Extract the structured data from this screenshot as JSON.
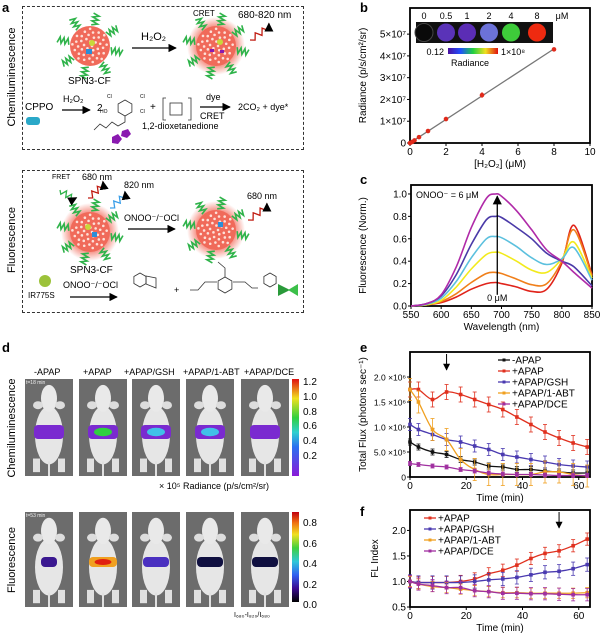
{
  "panels": {
    "a": "a",
    "b": "b",
    "c": "c",
    "d": "d",
    "e": "e",
    "f": "f"
  },
  "panel_a": {
    "row_labels": {
      "chemi": "Chemiluminescence",
      "fluo": "Fluorescence"
    },
    "chemi": {
      "oxidant": "H₂O₂",
      "cret": "CRET",
      "emission": "680-820 nm",
      "particle": "SPN3-CF",
      "cppo": "CPPO",
      "oxidant2": "H₂O₂",
      "coeff": "2",
      "plus": "+",
      "dye": "dye",
      "cret2": "CRET",
      "products": "2CO₂ + dye*",
      "intermediate": "1,2-dioxetanedione",
      "cl1": "Cl",
      "cl2": "Cl",
      "cl3": "Cl",
      "ho": "HO"
    },
    "fluo": {
      "fret": "FRET",
      "em1": "680 nm",
      "em2": "820 nm",
      "em3": "680 nm",
      "oxidant": "ONOO⁻/⁻OCl",
      "particle": "SPN3-CF",
      "dye": "IR775S",
      "oxidant2": "ONOO⁻/⁻OCl",
      "plus": "+"
    }
  },
  "panel_d": {
    "columns": [
      "-APAP",
      "+APAP",
      "+APAP/GSH",
      "+APAP/1-ABT",
      "+APAP/DCE"
    ],
    "row_labels": {
      "chemi": "Chemiluminescence",
      "fluo": "Fluorescence"
    },
    "timestamps": {
      "chemi": "t=18 min",
      "fluo": "t=53 min"
    },
    "colorbar_chemi": {
      "ticks": [
        "1.2",
        "1.0",
        "0.8",
        "0.6",
        "0.4",
        "0.2"
      ],
      "caption": "× 10⁵ Radiance (p/s/cm²/sr)"
    },
    "colorbar_fluo": {
      "ticks": [
        "0.8",
        "0.6",
        "0.4",
        "0.2",
        "0.0"
      ],
      "caption": "I₆₈₀-I₈₂₀/I₆₈₀"
    },
    "signal_intensity_chemi": [
      0.2,
      1.1,
      0.5,
      0.4,
      0.15
    ],
    "signal_intensity_fluo": [
      0.05,
      0.75,
      0.15,
      0.05,
      0.05
    ]
  },
  "chart_data": [
    {
      "id": "b",
      "type": "scatter",
      "xlabel": "[H₂O₂] (μM)",
      "ylabel": "Radiance (p/s/cm²/sr)",
      "xlim": [
        0,
        10
      ],
      "ylim": [
        0,
        62000000
      ],
      "xticks": [
        0,
        2,
        4,
        6,
        8,
        10
      ],
      "xtick_labels": [
        "0",
        "2",
        "4",
        "6",
        "8",
        "10"
      ],
      "yticks": [
        0,
        10000000,
        20000000,
        30000000,
        40000000,
        50000000
      ],
      "ytick_labels": [
        "0",
        "1×10⁷",
        "2×10⁷",
        "3×10⁷",
        "4×10⁷",
        "5×10⁷"
      ],
      "x": [
        0,
        0.125,
        0.25,
        0.5,
        1,
        2,
        4,
        8
      ],
      "y": [
        0,
        500000,
        1200000,
        2700000,
        5500000,
        11000000,
        22000000,
        43000000
      ],
      "err": [
        200000,
        200000,
        300000,
        400000,
        500000,
        1000000,
        1300000,
        900000
      ],
      "fit": "linear",
      "marker_color": "#e02a1b",
      "fit_color": "#777777",
      "inset": {
        "labels": [
          "0",
          "0.5",
          "1",
          "2",
          "4",
          "8"
        ],
        "unit": "μM",
        "cbar_min": "0.12",
        "cbar_max": "1×10⁸",
        "cbar_label": "Radiance",
        "well_colors": [
          "#0a0a0a",
          "#5a33b8",
          "#5b2db5",
          "#6c72d8",
          "#3ecb3a",
          "#ee2a10"
        ]
      }
    },
    {
      "id": "c",
      "type": "line",
      "xlabel": "Wavelength (nm)",
      "ylabel": "Fluorescence (Norm.)",
      "xlim": [
        550,
        850
      ],
      "ylim": [
        0,
        1.08
      ],
      "xticks": [
        550,
        600,
        650,
        700,
        750,
        800,
        850
      ],
      "xtick_labels": [
        "550",
        "600",
        "650",
        "700",
        "750",
        "800",
        "850"
      ],
      "yticks": [
        0,
        0.2,
        0.4,
        0.6,
        0.8,
        1.0
      ],
      "ytick_labels": [
        "0.0",
        "0.2",
        "0.4",
        "0.6",
        "0.8",
        "1.0"
      ],
      "x": [
        550,
        575,
        600,
        625,
        650,
        675,
        690,
        700,
        725,
        750,
        775,
        800,
        820,
        850
      ],
      "series": [
        {
          "color": "#e0241b",
          "values": [
            0,
            0.01,
            0.03,
            0.08,
            0.15,
            0.2,
            0.21,
            0.2,
            0.17,
            0.13,
            0.15,
            0.38,
            0.72,
            0.28
          ]
        },
        {
          "color": "#f07f1a",
          "values": [
            0,
            0.01,
            0.04,
            0.11,
            0.21,
            0.29,
            0.3,
            0.29,
            0.24,
            0.19,
            0.2,
            0.4,
            0.68,
            0.27
          ]
        },
        {
          "color": "#f2ea1c",
          "values": [
            0,
            0.01,
            0.05,
            0.17,
            0.33,
            0.46,
            0.48,
            0.47,
            0.4,
            0.32,
            0.3,
            0.42,
            0.57,
            0.25
          ]
        },
        {
          "color": "#5bc0de",
          "values": [
            0,
            0.015,
            0.07,
            0.22,
            0.43,
            0.6,
            0.62,
            0.61,
            0.53,
            0.43,
            0.37,
            0.42,
            0.52,
            0.23
          ]
        },
        {
          "color": "#4a3aa8",
          "values": [
            0,
            0.02,
            0.09,
            0.28,
            0.55,
            0.77,
            0.8,
            0.79,
            0.7,
            0.6,
            0.47,
            0.4,
            0.35,
            0.18
          ]
        },
        {
          "color": "#b02aa8",
          "values": [
            0,
            0.02,
            0.1,
            0.35,
            0.7,
            0.96,
            1.0,
            0.98,
            0.85,
            0.68,
            0.5,
            0.4,
            0.3,
            0.16
          ]
        }
      ],
      "annotations": {
        "top": "ONOO⁻ = 6 μM",
        "bottom": "0 μM",
        "arrow_x": 693
      }
    },
    {
      "id": "e",
      "type": "line",
      "xlabel": "Time (min)",
      "ylabel": "Total Flux (photons sec⁻¹)",
      "xlim": [
        0,
        64
      ],
      "ylim": [
        0,
        2500000
      ],
      "xticks": [
        0,
        20,
        40,
        60
      ],
      "xtick_labels": [
        "0",
        "20",
        "40",
        "60"
      ],
      "yticks": [
        0,
        500000,
        1000000,
        1500000,
        2000000
      ],
      "ytick_labels": [
        "0",
        "5.0 ×10⁵",
        "1.0 ×10⁶",
        "1.5 ×10⁶",
        "2.0 ×10⁶"
      ],
      "x": [
        0,
        3,
        8,
        13,
        18,
        23,
        28,
        33,
        38,
        43,
        48,
        53,
        58,
        63
      ],
      "arrow_x": 13,
      "legend": "top-right",
      "series": [
        {
          "name": "-APAP",
          "color": "#111111",
          "values": [
            700000,
            600000,
            500000,
            450000,
            350000,
            300000,
            220000,
            200000,
            150000,
            150000,
            120000,
            100000,
            80000,
            80000
          ],
          "err": 60000
        },
        {
          "name": "+APAP",
          "color": "#e0301e",
          "values": [
            1750000,
            1750000,
            1550000,
            1700000,
            1650000,
            1550000,
            1450000,
            1350000,
            1200000,
            1050000,
            900000,
            780000,
            680000,
            600000
          ],
          "err": 150000
        },
        {
          "name": "+APAP/GSH",
          "color": "#4a3ab0",
          "values": [
            1050000,
            950000,
            850000,
            750000,
            700000,
            620000,
            550000,
            450000,
            400000,
            350000,
            300000,
            250000,
            220000,
            200000
          ],
          "err": 120000
        },
        {
          "name": "+APAP/1-ABT",
          "color": "#f0a020",
          "values": [
            1750000,
            1500000,
            950000,
            750000,
            350000,
            150000,
            50000,
            50000,
            50000,
            50000,
            100000,
            100000,
            50000,
            20000
          ],
          "err": 220000
        },
        {
          "name": "+APAP/DCE",
          "color": "#a030a0",
          "values": [
            270000,
            250000,
            220000,
            200000,
            150000,
            120000,
            80000,
            60000,
            50000,
            50000,
            40000,
            30000,
            30000,
            30000
          ],
          "err": 40000
        }
      ]
    },
    {
      "id": "f",
      "type": "line",
      "xlabel": "Time (min)",
      "ylabel": "FL Index",
      "xlim": [
        0,
        64
      ],
      "ylim": [
        0.5,
        2.4
      ],
      "xticks": [
        0,
        20,
        40,
        60
      ],
      "xtick_labels": [
        "0",
        "20",
        "40",
        "60"
      ],
      "yticks": [
        0.5,
        1.0,
        1.5,
        2.0
      ],
      "ytick_labels": [
        "0.5",
        "1.0",
        "1.5",
        "2.0"
      ],
      "x": [
        0,
        3,
        8,
        13,
        18,
        23,
        28,
        33,
        38,
        43,
        48,
        53,
        58,
        63
      ],
      "arrow_x": 53,
      "legend": "top-left",
      "series": [
        {
          "name": "+APAP",
          "color": "#e0301e",
          "values": [
            1.0,
            0.98,
            0.98,
            0.98,
            1.0,
            1.05,
            1.15,
            1.22,
            1.32,
            1.45,
            1.55,
            1.6,
            1.7,
            1.83
          ],
          "err": 0.12
        },
        {
          "name": "+APAP/GSH",
          "color": "#4a3ab0",
          "values": [
            1.0,
            0.98,
            0.98,
            0.98,
            0.98,
            1.0,
            1.03,
            1.05,
            1.08,
            1.13,
            1.18,
            1.2,
            1.25,
            1.33
          ],
          "err": 0.13
        },
        {
          "name": "+APAP/1-ABT",
          "color": "#f0a020",
          "values": [
            1.0,
            0.95,
            0.9,
            0.88,
            0.85,
            0.82,
            0.8,
            0.78,
            0.78,
            0.77,
            0.77,
            0.77,
            0.77,
            0.78
          ],
          "err": 0.1
        },
        {
          "name": "+APAP/DCE",
          "color": "#a030a0",
          "values": [
            1.0,
            0.95,
            0.92,
            0.88,
            0.88,
            0.82,
            0.8,
            0.77,
            0.77,
            0.76,
            0.76,
            0.75,
            0.74,
            0.74
          ],
          "err": 0.12
        }
      ]
    }
  ]
}
